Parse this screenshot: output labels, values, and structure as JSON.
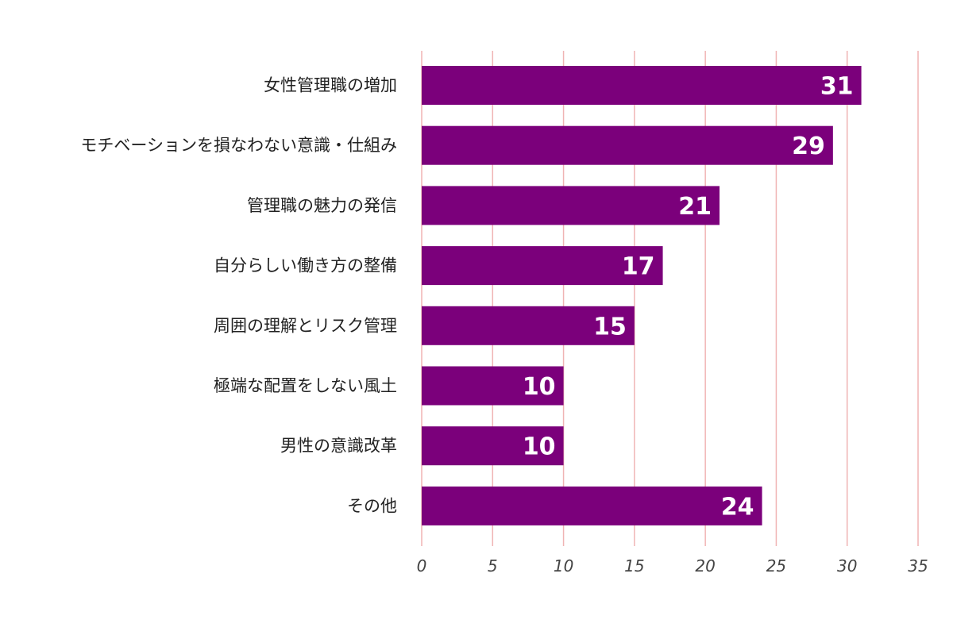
{
  "chart_data": {
    "type": "bar",
    "orientation": "horizontal",
    "categories": [
      "女性管理職の増加",
      "モチベーションを損なわない意識・仕組み",
      "管理職の魅力の発信",
      "自分らしい働き方の整備",
      "周囲の理解とリスク管理",
      "極端な配置をしない風土",
      "男性の意識改革",
      "その他"
    ],
    "values": [
      31,
      29,
      21,
      17,
      15,
      10,
      10,
      24
    ],
    "title": "",
    "xlabel": "",
    "ylabel": "",
    "xlim": [
      0,
      35
    ],
    "xticks": [
      "0",
      "5",
      "10",
      "15",
      "20",
      "25",
      "30",
      "35"
    ],
    "grid": "vertical",
    "bar_color": "#7b007b",
    "grid_color": "#f0b4b4",
    "value_label_color": "#ffffff"
  }
}
